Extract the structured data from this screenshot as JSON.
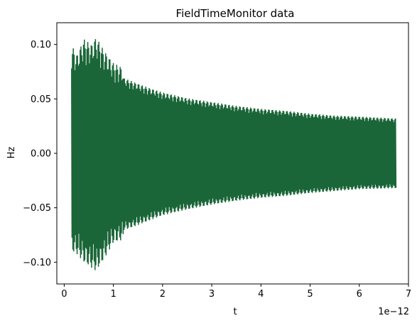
{
  "chart_data": {
    "type": "line",
    "title": "FieldTimeMonitor data",
    "xlabel": "t",
    "ylabel": "Hz",
    "x_offset_label": "1e−12",
    "xlim": [
      -1.5e-13,
      7e-12
    ],
    "ylim": [
      -0.12,
      0.12
    ],
    "x_ticks": [
      {
        "value": 0.0,
        "label": "0"
      },
      {
        "value": 1e-12,
        "label": "1"
      },
      {
        "value": 2e-12,
        "label": "2"
      },
      {
        "value": 3e-12,
        "label": "3"
      },
      {
        "value": 4e-12,
        "label": "4"
      },
      {
        "value": 5e-12,
        "label": "5"
      },
      {
        "value": 6e-12,
        "label": "6"
      },
      {
        "value": 7e-12,
        "label": "7"
      }
    ],
    "y_ticks": [
      {
        "value": 0.1,
        "label": "0.10"
      },
      {
        "value": 0.05,
        "label": "0.05"
      },
      {
        "value": 0.0,
        "label": "0.00"
      },
      {
        "value": -0.05,
        "label": "−0.05"
      },
      {
        "value": -0.1,
        "label": "−0.10"
      }
    ],
    "grid": false,
    "series": [
      {
        "color": "#1a6638",
        "t_start": 1.5e-13,
        "t_end": 6.75e-12,
        "envelope": [
          {
            "t": 1.5e-13,
            "upper": 0.1,
            "lower": -0.09
          },
          {
            "t": 2.5e-13,
            "upper": 0.09,
            "lower": -0.092
          },
          {
            "t": 4e-13,
            "upper": 0.105,
            "lower": -0.1
          },
          {
            "t": 5.5e-13,
            "upper": 0.1,
            "lower": -0.105
          },
          {
            "t": 6.5e-13,
            "upper": 0.107,
            "lower": -0.108
          },
          {
            "t": 8e-13,
            "upper": 0.095,
            "lower": -0.098
          },
          {
            "t": 1e-12,
            "upper": 0.083,
            "lower": -0.082
          },
          {
            "t": 1.3e-12,
            "upper": 0.076,
            "lower": -0.078
          },
          {
            "t": 1.7e-12,
            "upper": 0.068,
            "lower": -0.07
          },
          {
            "t": 2e-12,
            "upper": 0.063,
            "lower": -0.064
          },
          {
            "t": 2.5e-12,
            "upper": 0.057,
            "lower": -0.058
          },
          {
            "t": 3e-12,
            "upper": 0.053,
            "lower": -0.053
          },
          {
            "t": 3.5e-12,
            "upper": 0.049,
            "lower": -0.049
          },
          {
            "t": 4e-12,
            "upper": 0.046,
            "lower": -0.046
          },
          {
            "t": 4.5e-12,
            "upper": 0.044,
            "lower": -0.044
          },
          {
            "t": 5e-12,
            "upper": 0.041,
            "lower": -0.041
          },
          {
            "t": 5.5e-12,
            "upper": 0.039,
            "lower": -0.039
          },
          {
            "t": 6e-12,
            "upper": 0.038,
            "lower": -0.037
          },
          {
            "t": 6.75e-12,
            "upper": 0.036,
            "lower": -0.036
          }
        ]
      }
    ]
  }
}
